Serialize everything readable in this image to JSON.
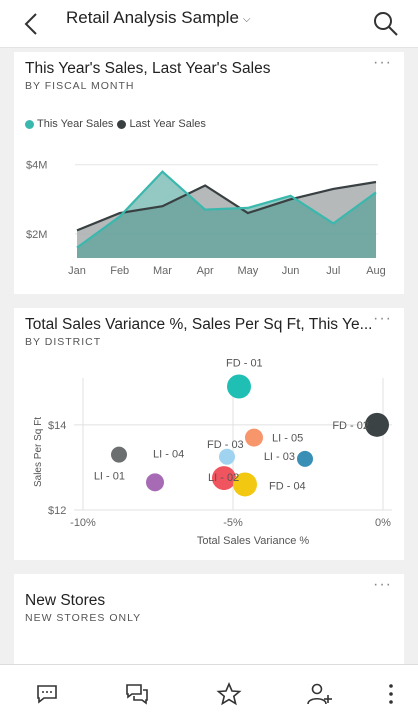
{
  "header": {
    "title": "Retail Analysis Sample"
  },
  "card1": {
    "title": "This Year's Sales, Last Year's Sales",
    "subtitle": "BY FISCAL MONTH",
    "more": "···",
    "legend": [
      {
        "name": "This Year Sales",
        "color": "#3bb8ad"
      },
      {
        "name": "Last Year Sales",
        "color": "#384042"
      }
    ]
  },
  "card2": {
    "title": "Total Sales Variance %, Sales Per Sq Ft, This Ye...",
    "subtitle": "BY DISTRICT",
    "more": "···"
  },
  "card3": {
    "title": "New Stores",
    "subtitle": "NEW STORES ONLY",
    "more": "···"
  },
  "chart_data": [
    {
      "type": "area",
      "title": "This Year's Sales, Last Year's Sales",
      "categories": [
        "Jan",
        "Feb",
        "Mar",
        "Apr",
        "May",
        "Jun",
        "Jul",
        "Aug"
      ],
      "y_tick_labels": [
        "$4M",
        "$2M"
      ],
      "y_ticks": [
        4,
        2
      ],
      "ylim": [
        1.3,
        4.6
      ],
      "series": [
        {
          "name": "This Year Sales",
          "color": "#3bb8ad",
          "values": [
            1.6,
            2.5,
            3.8,
            2.7,
            2.75,
            3.1,
            2.3,
            3.2
          ]
        },
        {
          "name": "Last Year Sales",
          "color": "#384042",
          "values": [
            2.1,
            2.6,
            2.8,
            3.4,
            2.6,
            3.0,
            3.3,
            3.5
          ]
        }
      ]
    },
    {
      "type": "scatter",
      "title": "Total Sales Variance %, Sales Per Sq Ft, This Ye...",
      "xlabel": "Total Sales Variance %",
      "ylabel": "Sales Per Sq Ft",
      "x_tick_labels": [
        "-10%",
        "-5%",
        "0%"
      ],
      "x_ticks": [
        -10,
        -5,
        0
      ],
      "y_tick_labels": [
        "$14",
        "$12"
      ],
      "y_ticks": [
        14,
        12
      ],
      "xlim": [
        -10.3,
        0.3
      ],
      "ylim": [
        12,
        15.1
      ],
      "points": [
        {
          "label": "FD - 01",
          "x": -4.8,
          "y": 14.9,
          "size": 12,
          "color": "#1fbfb3"
        },
        {
          "label": "FD - 02",
          "x": -0.2,
          "y": 14.0,
          "size": 12,
          "color": "#3c4345"
        },
        {
          "label": "LI - 05",
          "x": -4.3,
          "y": 13.7,
          "size": 9,
          "color": "#f7956b"
        },
        {
          "label": "LI - 03",
          "x": -2.6,
          "y": 13.2,
          "size": 8,
          "color": "#3a8fb7"
        },
        {
          "label": "FD - 03",
          "x": -5.2,
          "y": 13.25,
          "size": 8,
          "color": "#9fd3ef"
        },
        {
          "label": "LI - 04",
          "x": -8.8,
          "y": 13.3,
          "size": 8,
          "color": "#6b6f70"
        },
        {
          "label": "LI - 01",
          "x": -7.6,
          "y": 12.65,
          "size": 9,
          "color": "#a66bb4"
        },
        {
          "label": "LI - 02",
          "x": -5.3,
          "y": 12.75,
          "size": 12,
          "color": "#f0555f"
        },
        {
          "label": "FD - 04",
          "x": -4.6,
          "y": 12.6,
          "size": 12,
          "color": "#f2c811"
        }
      ]
    }
  ]
}
